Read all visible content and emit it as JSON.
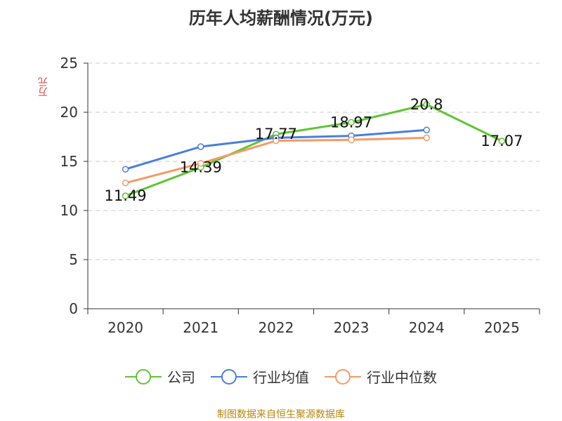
{
  "chart_data": {
    "type": "line",
    "title": "历年人均薪酬情况(万元)",
    "ylabel": "万元",
    "categories": [
      "2020",
      "2021",
      "2022",
      "2023",
      "2024",
      "2025"
    ],
    "ylim": [
      0,
      25
    ],
    "yticks": [
      0,
      5,
      10,
      15,
      20,
      25
    ],
    "grid": true,
    "legend_position": "bottom",
    "series": [
      {
        "name": "公司",
        "color": "#5ec531",
        "values": [
          11.49,
          14.39,
          17.77,
          18.97,
          20.8,
          17.07
        ],
        "labels": [
          "11.49",
          "14.39",
          "17.77",
          "18.97",
          "20.8",
          "17.07"
        ]
      },
      {
        "name": "行业均值",
        "color": "#4a7fda",
        "values": [
          14.2,
          16.5,
          17.4,
          17.6,
          18.2,
          null
        ]
      },
      {
        "name": "行业中位数",
        "color": "#f59a66",
        "values": [
          12.8,
          14.8,
          17.1,
          17.2,
          17.4,
          null
        ]
      }
    ]
  },
  "source_text": "制图数据来自恒生聚源数据库"
}
